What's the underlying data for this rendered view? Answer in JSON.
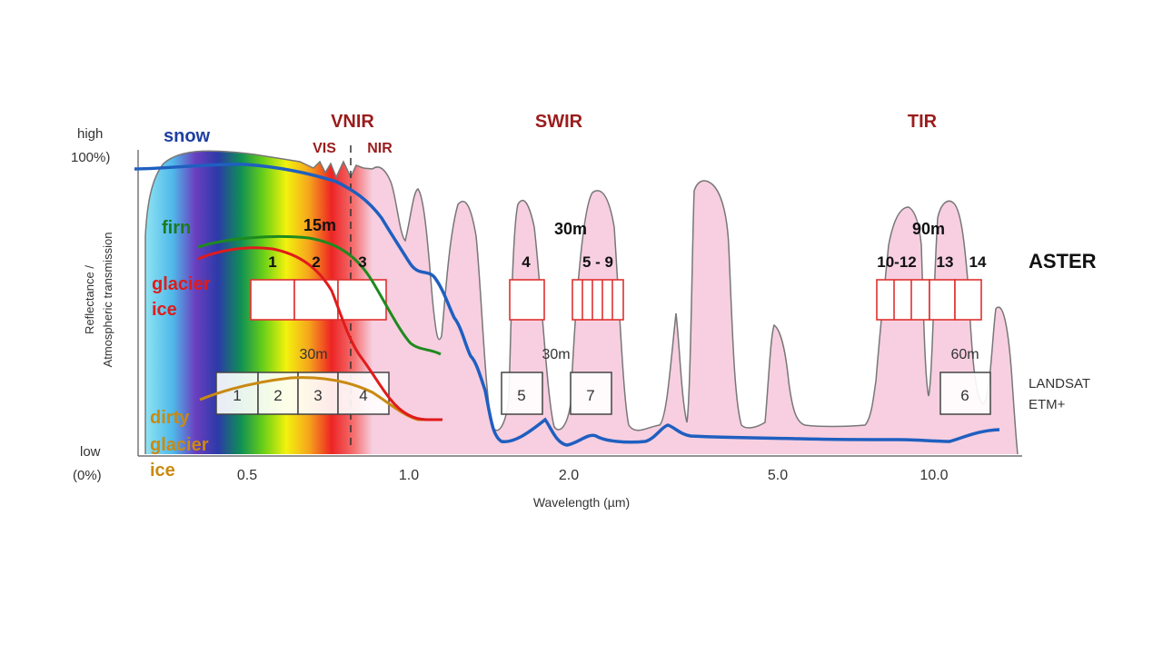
{
  "labels": {
    "y_high": "high",
    "y_high_pct": "100%)",
    "y_low": "low",
    "y_low_pct": "(0%)",
    "y_axis_line1": "Reflectance /",
    "y_axis_line2": "Atmospheric transmission",
    "x_axis": "Wavelength (µm)",
    "region_vnir": "VNIR",
    "region_vis": "VIS",
    "region_nir": "NIR",
    "region_swir": "SWIR",
    "region_tir": "TIR",
    "curve_snow": "snow",
    "curve_firn": "firn",
    "curve_glacier": "glacier",
    "curve_ice": "ice",
    "curve_dirty": "dirty",
    "curve_dirty_glacier": "glacier",
    "curve_dirty_ice": "ice",
    "aster": "ASTER",
    "landsat_line1": "LANDSAT",
    "landsat_line2": "ETM+",
    "res_15m": "15m",
    "res_30m_swir": "30m",
    "res_90m": "90m",
    "res_30m_landsat_vnir": "30m",
    "res_30m_landsat_swir": "30m",
    "res_60m": "60m"
  },
  "x_ticks": [
    "0.5",
    "1.0",
    "2.0",
    "5.0",
    "10.0"
  ],
  "aster_bands": [
    {
      "label": "1",
      "sub": 1
    },
    {
      "label": "2",
      "sub": 1
    },
    {
      "label": "3",
      "sub": 1
    },
    {
      "label": "4",
      "sub": 1
    },
    {
      "label": "5 - 9",
      "sub": 5
    },
    {
      "label": "10-12",
      "sub": 3
    },
    {
      "label": "13",
      "sub": 1
    },
    {
      "label": "14",
      "sub": 1
    }
  ],
  "landsat_bands": [
    "1",
    "2",
    "3",
    "4",
    "5",
    "7",
    "6"
  ],
  "colors": {
    "snow": "#1f5fc0",
    "firn": "#1e8a1e",
    "glacier_ice": "#e01b1b",
    "dirty_glacier_ice": "#c98a12",
    "region_text": "#9b1c1c",
    "transmission_fill": "#f7cfe0",
    "transmission_stroke": "#777777",
    "aster_box": "#e03030",
    "landsat_box": "#444444"
  }
}
